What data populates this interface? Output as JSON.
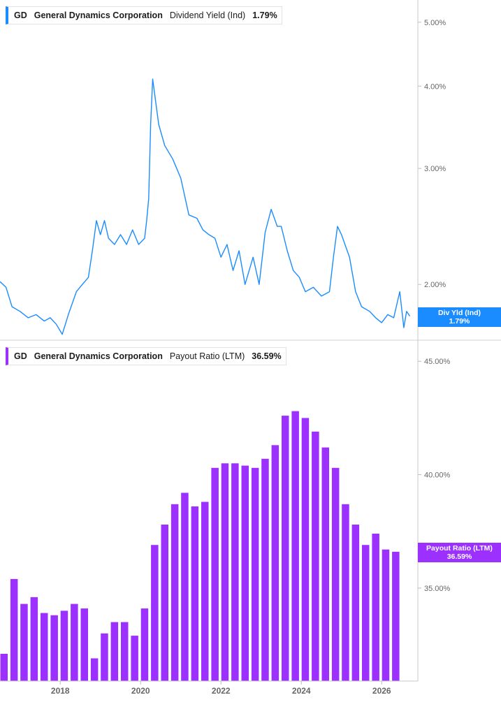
{
  "colors": {
    "yield": "#1a8cff",
    "payout": "#9b30ff",
    "axis": "#666666"
  },
  "top_legend": {
    "ticker": "GD",
    "name": "General Dynamics Corporation",
    "metric": "Dividend Yield (Ind)",
    "value": "1.79%"
  },
  "bottom_legend": {
    "ticker": "GD",
    "name": "General Dynamics Corporation",
    "metric": "Payout Ratio (LTM)",
    "value": "36.59%"
  },
  "top_tag": {
    "label": "Div Yld (Ind)",
    "value": "1.79%"
  },
  "bottom_tag": {
    "label": "Payout Ratio (LTM)",
    "value": "36.59%"
  },
  "chart_data": [
    {
      "type": "line",
      "series": [
        {
          "name": "Dividend Yield (Ind)",
          "x": [
            2016.5,
            2016.65,
            2016.8,
            2017.0,
            2017.2,
            2017.4,
            2017.6,
            2017.75,
            2017.9,
            2018.05,
            2018.2,
            2018.4,
            2018.55,
            2018.7,
            2018.8,
            2018.9,
            2019.0,
            2019.1,
            2019.2,
            2019.35,
            2019.5,
            2019.65,
            2019.8,
            2019.95,
            2020.1,
            2020.15,
            2020.2,
            2020.25,
            2020.3,
            2020.45,
            2020.6,
            2020.8,
            2021.0,
            2021.2,
            2021.4,
            2021.55,
            2021.7,
            2021.85,
            2022.0,
            2022.15,
            2022.3,
            2022.45,
            2022.6,
            2022.8,
            2022.95,
            2023.1,
            2023.25,
            2023.4,
            2023.5,
            2023.65,
            2023.8,
            2023.95,
            2024.1,
            2024.3,
            2024.5,
            2024.7,
            2024.8,
            2024.9,
            2025.0,
            2025.2,
            2025.35,
            2025.5,
            2025.7,
            2025.85,
            2026.0,
            2026.15,
            2026.3,
            2026.45,
            2026.55,
            2026.62,
            2026.7
          ],
          "values": [
            2.02,
            1.98,
            1.85,
            1.82,
            1.78,
            1.8,
            1.76,
            1.78,
            1.74,
            1.68,
            1.8,
            1.95,
            2.0,
            2.05,
            2.25,
            2.5,
            2.38,
            2.5,
            2.35,
            2.3,
            2.38,
            2.3,
            2.42,
            2.3,
            2.35,
            2.5,
            2.7,
            3.5,
            4.1,
            3.5,
            3.25,
            3.1,
            2.9,
            2.55,
            2.52,
            2.42,
            2.38,
            2.35,
            2.2,
            2.3,
            2.1,
            2.25,
            2.0,
            2.2,
            2.0,
            2.4,
            2.6,
            2.45,
            2.45,
            2.25,
            2.1,
            2.05,
            1.95,
            1.98,
            1.92,
            1.95,
            2.2,
            2.45,
            2.38,
            2.2,
            1.95,
            1.85,
            1.82,
            1.78,
            1.75,
            1.8,
            1.78,
            1.95,
            1.72,
            1.82,
            1.79
          ]
        }
      ],
      "ylim": [
        1.65,
        5.3
      ],
      "scale": "log",
      "yticks": [
        "2.00%",
        "3.00%",
        "4.00%",
        "5.00%"
      ],
      "ytick_values": [
        2,
        3,
        4,
        5
      ],
      "grid": false
    },
    {
      "type": "bar",
      "series": [
        {
          "name": "Payout Ratio (LTM)",
          "x": [
            2016.6,
            2016.85,
            2017.1,
            2017.35,
            2017.6,
            2017.85,
            2018.1,
            2018.35,
            2018.6,
            2018.85,
            2019.1,
            2019.35,
            2019.6,
            2019.85,
            2020.1,
            2020.35,
            2020.6,
            2020.85,
            2021.1,
            2021.35,
            2021.6,
            2021.85,
            2022.1,
            2022.35,
            2022.6,
            2022.85,
            2023.1,
            2023.35,
            2023.6,
            2023.85,
            2024.1,
            2024.35,
            2024.6,
            2024.85,
            2025.1,
            2025.35,
            2025.6,
            2025.85,
            2026.1,
            2026.35
          ],
          "values": [
            32.1,
            35.4,
            34.3,
            34.6,
            33.9,
            33.8,
            34.0,
            34.3,
            34.1,
            31.9,
            33.0,
            33.5,
            33.5,
            32.9,
            34.1,
            36.9,
            37.8,
            38.7,
            39.2,
            38.6,
            38.8,
            40.3,
            40.5,
            40.5,
            40.4,
            40.3,
            40.7,
            41.3,
            42.6,
            42.8,
            42.5,
            41.9,
            41.2,
            40.3,
            38.7,
            37.8,
            36.9,
            37.4,
            36.7,
            36.6
          ]
        }
      ],
      "ylim": [
        30.9,
        45.9
      ],
      "yticks": [
        "35.00%",
        "40.00%",
        "45.00%"
      ],
      "ytick_values": [
        35,
        40,
        45
      ],
      "xlim": [
        2016.5,
        2026.9
      ],
      "xticks": [
        "2018",
        "2020",
        "2022",
        "2024",
        "2026"
      ],
      "xtick_values": [
        2018,
        2020,
        2022,
        2024,
        2026
      ],
      "grid": false
    }
  ]
}
